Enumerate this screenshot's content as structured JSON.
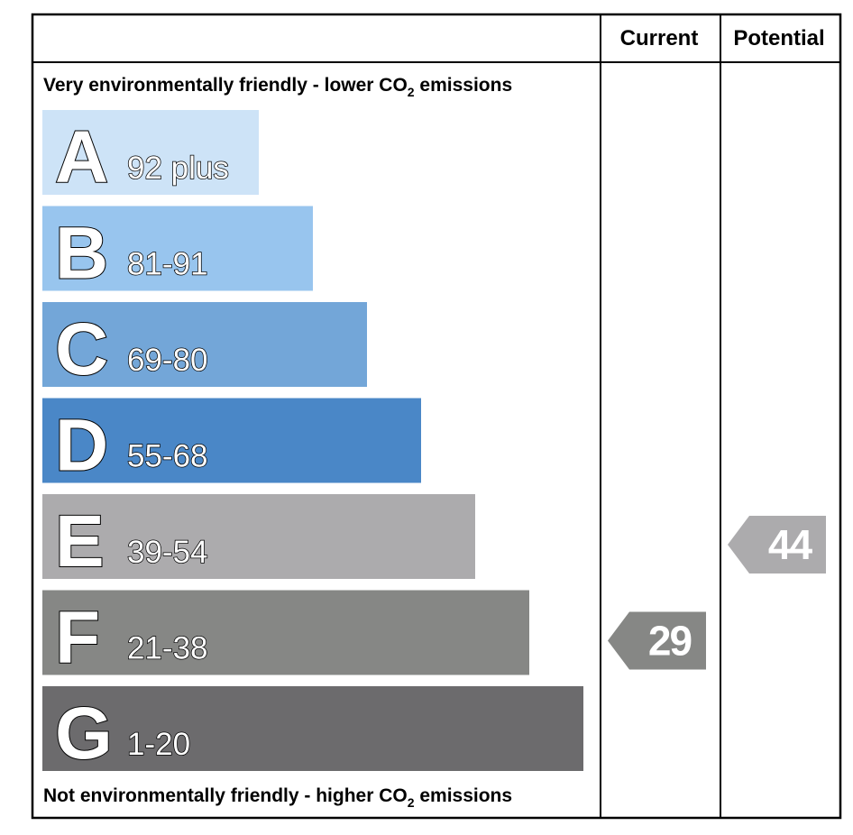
{
  "chart_data": {
    "type": "bar",
    "header": {
      "current_label": "Current",
      "potential_label": "Potential"
    },
    "top_caption": {
      "pre": "Very environmentally friendly - lower CO",
      "sub": "2",
      "post": " emissions"
    },
    "bottom_caption": {
      "pre": "Not environmentally friendly - higher CO",
      "sub": "2",
      "post": " emissions"
    },
    "bands": [
      {
        "letter": "A",
        "range": "92 plus",
        "min": 92,
        "max": 100,
        "color": "#cde3f7"
      },
      {
        "letter": "B",
        "range": "81-91",
        "min": 81,
        "max": 91,
        "color": "#98c5ee"
      },
      {
        "letter": "C",
        "range": "69-80",
        "min": 69,
        "max": 80,
        "color": "#73a6d8"
      },
      {
        "letter": "D",
        "range": "55-68",
        "min": 55,
        "max": 68,
        "color": "#4a87c7"
      },
      {
        "letter": "E",
        "range": "39-54",
        "min": 39,
        "max": 54,
        "color": "#acabad"
      },
      {
        "letter": "F",
        "range": "21-38",
        "min": 21,
        "max": 38,
        "color": "#868785"
      },
      {
        "letter": "G",
        "range": "1-20",
        "min": 1,
        "max": 20,
        "color": "#6c6b6d"
      }
    ],
    "current": {
      "value": 29,
      "band": "F",
      "color": "#868785"
    },
    "potential": {
      "value": 44,
      "band": "E",
      "color": "#acabad"
    }
  }
}
